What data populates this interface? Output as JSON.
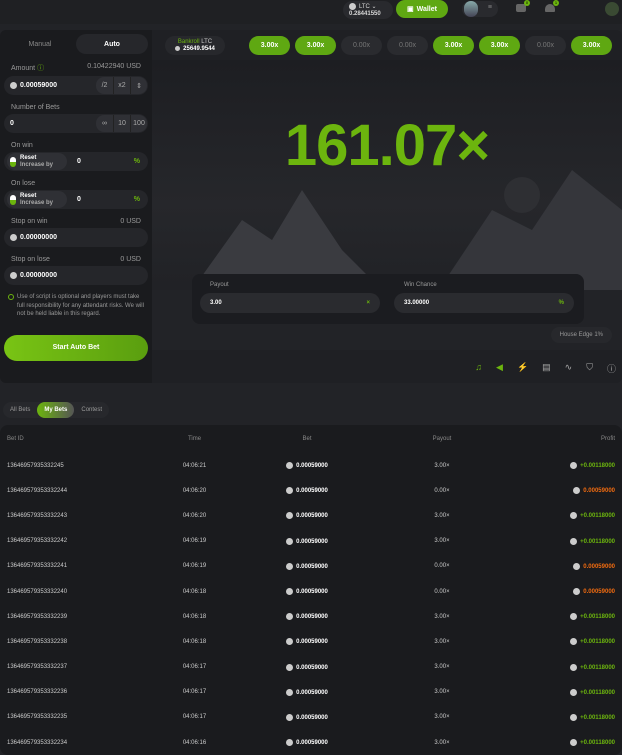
{
  "header": {
    "currency": "LTC",
    "balance": "0.28441550",
    "wallet_label": "Wallet",
    "inbox_count": "0",
    "notif_count": "1"
  },
  "left": {
    "tabs": [
      "Manual",
      "Auto"
    ],
    "active_tab": "Auto",
    "amount_label": "Amount",
    "amount_usd": "0.10422940 USD",
    "amount": "0.00059000",
    "half": "/2",
    "double": "x2",
    "bets_label": "Number of Bets",
    "bets": "0",
    "bets_options": [
      "∞",
      "10",
      "100"
    ],
    "on_win_label": "On win",
    "on_lose_label": "On lose",
    "reset": "Reset",
    "increase_by": "Increase by",
    "on_win_value": "0",
    "on_lose_value": "0",
    "pct": "%",
    "stop_win_label": "Stop on win",
    "stop_win_usd": "0 USD",
    "stop_win": "0.00000000",
    "stop_lose_label": "Stop on lose",
    "stop_lose_usd": "0 USD",
    "stop_lose": "0.00000000",
    "note": "Use of script is optional and players must take full responsibility for any attendant risks. We will not be held liable in this regard.",
    "start_label": "Start Auto Bet"
  },
  "game": {
    "bankroll_label": "Bankroll",
    "bankroll_currency": "LTC",
    "bankroll": "25649.9544",
    "history": [
      "3.00x",
      "3.00x",
      "0.00x",
      "0.00x",
      "3.00x",
      "3.00x",
      "0.00x",
      "3.00x"
    ],
    "multiplier": "161.07×",
    "payout_label": "Payout",
    "payout": "3.00",
    "payout_suffix": "×",
    "chance_label": "Win Chance",
    "chance": "33.00000",
    "chance_suffix": "%",
    "house_edge": "House Edge 1%"
  },
  "accent": "#6cb50e",
  "bets": {
    "tabs": [
      "All Bets",
      "My Bets",
      "Contest"
    ],
    "active_tab": "My Bets",
    "columns": [
      "Bet ID",
      "Time",
      "Bet",
      "Payout",
      "Profit"
    ],
    "rows": [
      [
        "1364695793533224​5",
        "04:06:21",
        "0.00059000",
        "3.00×",
        "+0.00118000"
      ],
      [
        "136469579353332244",
        "04:06:20",
        "0.00059000",
        "0.00×",
        "0.00059000"
      ],
      [
        "136469579353332243",
        "04:06:20",
        "0.00059000",
        "3.00×",
        "+0.00118000"
      ],
      [
        "136469579353332242",
        "04:06:19",
        "0.00059000",
        "3.00×",
        "+0.00118000"
      ],
      [
        "136469579353332241",
        "04:06:19",
        "0.00059000",
        "0.00×",
        "0.00059000"
      ],
      [
        "136469579353332240",
        "04:06:18",
        "0.00059000",
        "0.00×",
        "0.00059000"
      ],
      [
        "136469579353332239",
        "04:06:18",
        "0.00059000",
        "3.00×",
        "+0.00118000"
      ],
      [
        "136469579353332238",
        "04:06:18",
        "0.00059000",
        "3.00×",
        "+0.00118000"
      ],
      [
        "136469579353332237",
        "04:06:17",
        "0.00059000",
        "3.00×",
        "+0.00118000"
      ],
      [
        "136469579353332236",
        "04:06:17",
        "0.00059000",
        "3.00×",
        "+0.00118000"
      ],
      [
        "136469579353332235",
        "04:06:17",
        "0.00059000",
        "3.00×",
        "+0.00118000"
      ],
      [
        "136469579353332234",
        "04:06:16",
        "0.00059000",
        "3.00×",
        "+0.00118000"
      ]
    ]
  }
}
